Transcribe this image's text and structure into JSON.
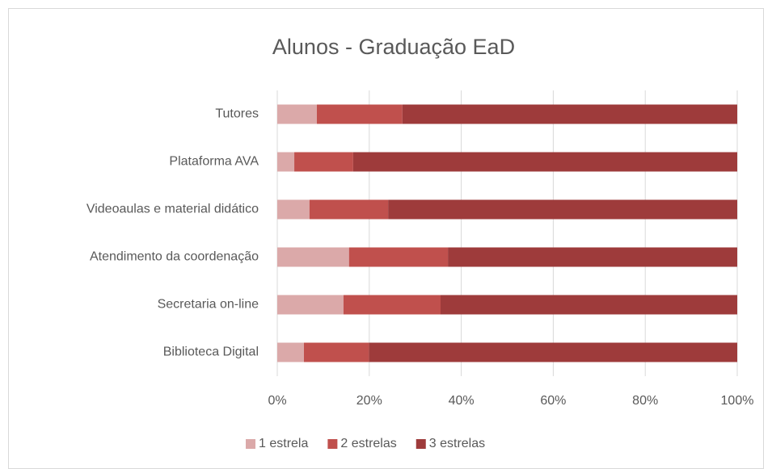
{
  "chart_data": {
    "type": "bar",
    "orientation": "horizontal",
    "stacked": true,
    "title": "Alunos - Graduação EaD",
    "categories": [
      "Tutores",
      "Plataforma AVA",
      "Videoaulas e material didático",
      "Atendimento da coordenação",
      "Secretaria on-line",
      "Biblioteca Digital"
    ],
    "series": [
      {
        "name": "1 estrela",
        "color": "#dba9a9",
        "values": [
          8.6,
          3.7,
          7.0,
          15.6,
          14.4,
          5.8
        ]
      },
      {
        "name": "2 estrelas",
        "color": "#c0504d",
        "values": [
          18.6,
          12.8,
          17.1,
          21.5,
          21.1,
          14.1
        ]
      },
      {
        "name": "3 estrelas",
        "color": "#9e3b3b",
        "values": [
          72.8,
          83.5,
          75.9,
          62.9,
          64.5,
          80.1
        ]
      }
    ],
    "xlim": [
      0,
      100
    ],
    "xticks": [
      {
        "value": 0,
        "label": "0%"
      },
      {
        "value": 20,
        "label": "20%"
      },
      {
        "value": 40,
        "label": "40%"
      },
      {
        "value": 60,
        "label": "60%"
      },
      {
        "value": 80,
        "label": "80%"
      },
      {
        "value": 100,
        "label": "100%"
      }
    ],
    "grid": true,
    "legend": "bottom"
  }
}
